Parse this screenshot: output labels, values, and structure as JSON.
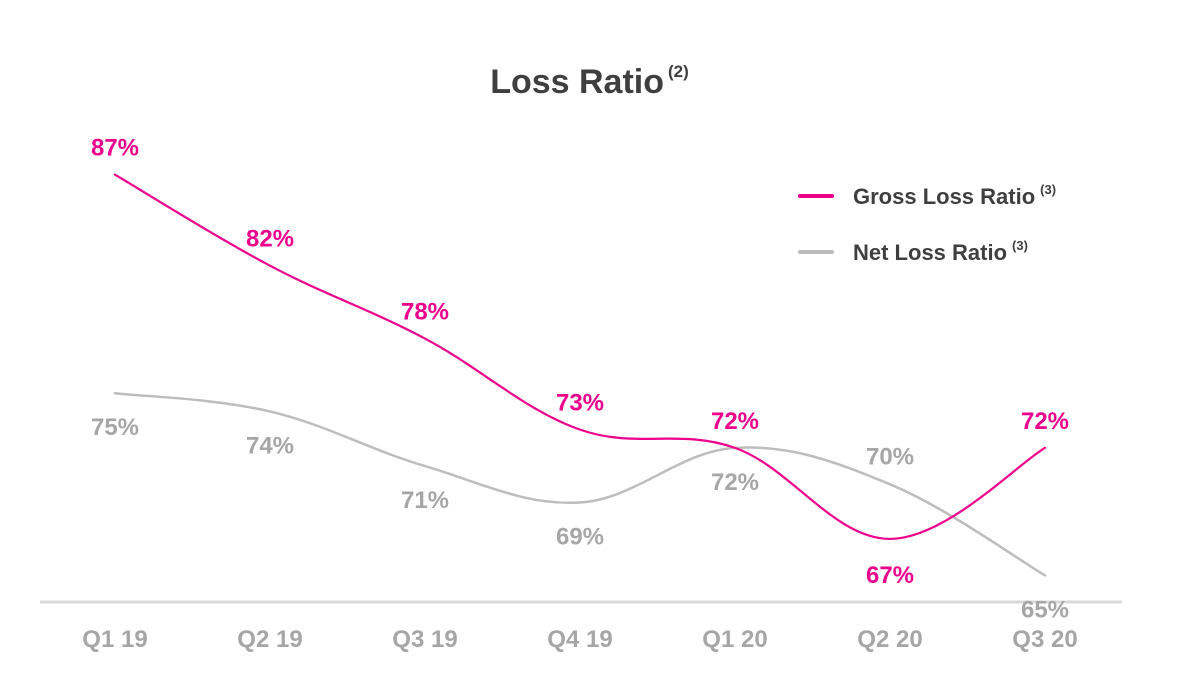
{
  "chart_data": {
    "type": "line",
    "title": "Loss Ratio",
    "title_note": "(2)",
    "categories": [
      "Q1 19",
      "Q2 19",
      "Q3 19",
      "Q4 19",
      "Q1 20",
      "Q2 20",
      "Q3 20"
    ],
    "series": [
      {
        "name": "Gross Loss Ratio",
        "note": "(3)",
        "color": "#ec008c",
        "values": [
          87,
          82,
          78,
          73,
          72,
          67,
          72
        ],
        "labels": [
          "87%",
          "82%",
          "78%",
          "73%",
          "72%",
          "67%",
          "72%"
        ]
      },
      {
        "name": "Net Loss Ratio",
        "note": "(3)",
        "color": "#bdbdbd",
        "values": [
          75,
          74,
          71,
          69,
          72,
          70,
          65
        ],
        "labels": [
          "75%",
          "74%",
          "71%",
          "69%",
          "72%",
          "70%",
          "65%"
        ]
      }
    ],
    "ylim": [
      62,
      90
    ],
    "grid": false,
    "legend_position": "top-right",
    "axis_color": "#d9d9d9",
    "tick_color": "#a6a6a6"
  }
}
